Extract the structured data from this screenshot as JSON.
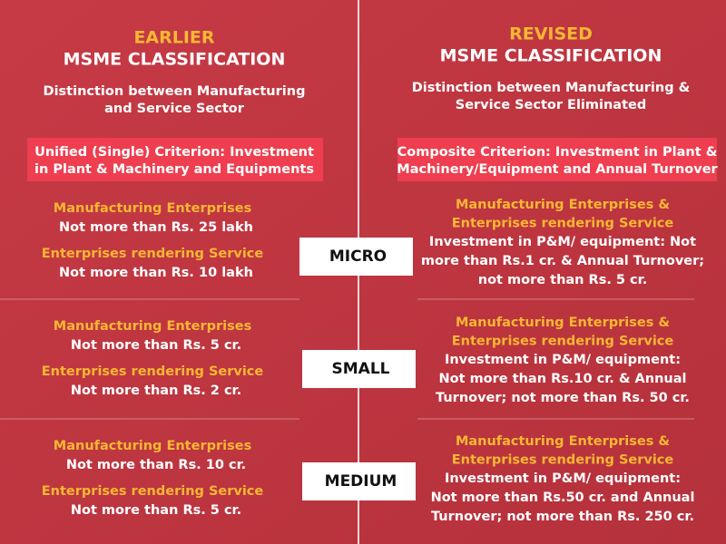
{
  "earlier": {
    "label": "EARLIER",
    "title": "MSME CLASSIFICATION",
    "subtitle": [
      "Distinction between Manufacturing",
      "and Service Sector"
    ],
    "criterion": [
      "Unified (Single) Criterion: Investment",
      "in Plant & Machinery and Equipments"
    ]
  },
  "revised": {
    "label": "REVISED",
    "title": "MSME CLASSIFICATION",
    "subtitle": [
      "Distinction between Manufacturing &",
      "Service Sector Eliminated"
    ],
    "criterion": [
      "Composite Criterion: Investment in Plant &",
      "Machinery/Equipment and Annual Turnover"
    ]
  },
  "rows": [
    {
      "category": "MICRO",
      "earlier": [
        {
          "heading": "Manufacturing Enterprises",
          "text": "Not more than Rs. 25 lakh"
        },
        {
          "heading": "Enterprises rendering Service",
          "text": "Not more than Rs. 10 lakh"
        }
      ],
      "revised": {
        "heading": [
          "Manufacturing Enterprises &",
          "Enterprises rendering Service"
        ],
        "text": [
          "Investment in P&M/ equipment:  Not",
          "more than Rs.1 cr. & Annual Turnover;",
          "not more than Rs. 5 cr."
        ]
      }
    },
    {
      "category": "SMALL",
      "earlier": [
        {
          "heading": "Manufacturing Enterprises",
          "text": "Not more than Rs. 5 cr."
        },
        {
          "heading": "Enterprises rendering Service",
          "text": "Not more than Rs. 2 cr."
        }
      ],
      "revised": {
        "heading": [
          "Manufacturing Enterprises &",
          "Enterprises rendering Service"
        ],
        "text": [
          "Investment in P&M/ equipment:",
          "Not more than Rs.10 cr. & Annual",
          "Turnover; not more than Rs. 50 cr."
        ]
      }
    },
    {
      "category": "MEDIUM",
      "earlier": [
        {
          "heading": "Manufacturing Enterprises",
          "text": "Not more than Rs. 10 cr."
        },
        {
          "heading": "Enterprises rendering Service",
          "text": "Not more than Rs.  5 cr."
        }
      ],
      "revised": {
        "heading": [
          "Manufacturing Enterprises &",
          "Enterprises rendering Service"
        ],
        "text": [
          "Investment in P&M/ equipment:",
          "Not more than Rs.50 cr. and Annual",
          "Turnover; not more than Rs. 250 cr."
        ]
      }
    }
  ]
}
